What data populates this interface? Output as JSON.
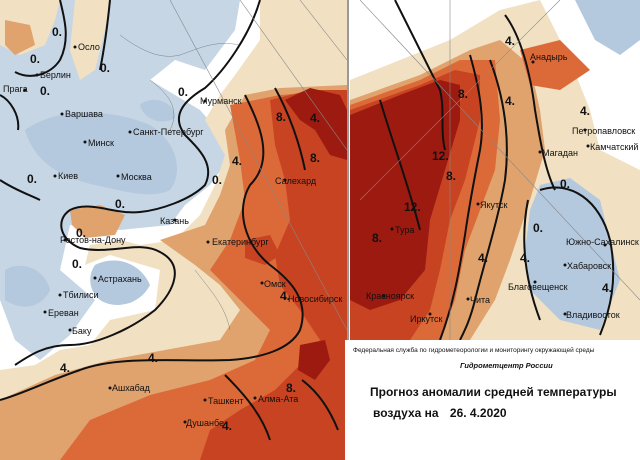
{
  "colors": {
    "cold": "#b4c8de",
    "pale_blue": "#c6d6e5",
    "neutral": "#f1e1c2",
    "warm1": "#e0a36e",
    "warm2": "#dc6a38",
    "warm3": "#c84322",
    "warm4": "#9d1a10",
    "land_edge": "#ffffff"
  },
  "west_map": {
    "cities": [
      "Осло",
      "Берлин",
      "Прага",
      "Варшава",
      "Минск",
      "Санкт-Петербург",
      "Киев",
      "Москва",
      "Мурманск",
      "Казань",
      "Ростов-на-Дону",
      "Астрахань",
      "Екатеринбург",
      "Салехард",
      "Тбилиси",
      "Ереван",
      "Баку",
      "Омск",
      "Новосибирск",
      "Ашхабад",
      "Ташкент",
      "Алма-Ата",
      "Душанбе"
    ],
    "isotherm_labels": [
      "0.",
      "0.",
      "0.",
      "0.",
      "0.",
      "0.",
      "0.",
      "0.",
      "0.",
      "0.",
      "4.",
      "4.",
      "4.",
      "4.",
      "4.",
      "8.",
      "8.",
      "8.",
      "4."
    ]
  },
  "east_map": {
    "cities": [
      "Анадырь",
      "Петропавловск",
      "Камчатский",
      "Магадан",
      "Якутск",
      "Тура",
      "Красноярск",
      "Иркутск",
      "Чита",
      "Благовещенск",
      "Хабаровск",
      "Южно-Сахалинск",
      "Владивосток"
    ],
    "isotherm_labels": [
      "4.",
      "4.",
      "4.",
      "8.",
      "12.",
      "8.",
      "12.",
      "8.",
      "4.",
      "0.",
      "0.",
      "4.",
      "4."
    ]
  },
  "info": {
    "agency": "Федеральная служба по гидрометеорологии и мониторингу окружающей среды",
    "center": "Гидрометцентр России",
    "title_line1": "Прогноз аномалии средней температуры",
    "title_line2_prefix": "воздуха на",
    "date": "26. 4.2020"
  }
}
